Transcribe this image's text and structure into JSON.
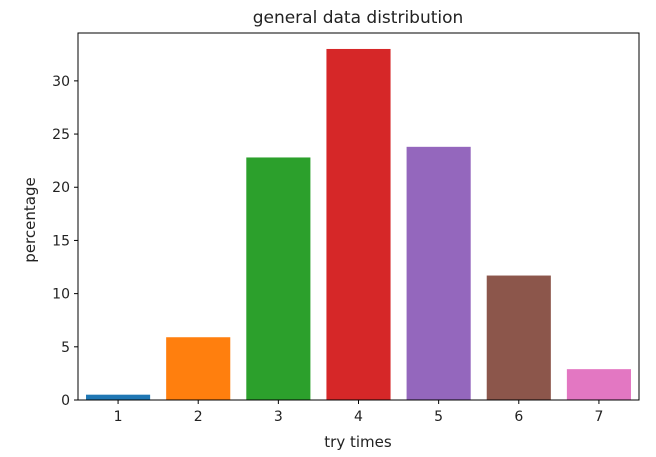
{
  "chart_data": {
    "type": "bar",
    "title": "general data distribution",
    "xlabel": "try times",
    "ylabel": "percentage",
    "categories": [
      "1",
      "2",
      "3",
      "4",
      "5",
      "6",
      "7"
    ],
    "values": [
      0.5,
      5.9,
      22.8,
      33.0,
      23.8,
      11.7,
      2.9
    ],
    "colors": [
      "#1f77b4",
      "#ff7f0e",
      "#2ca02c",
      "#d62728",
      "#9467bd",
      "#8c564b",
      "#e377c2"
    ],
    "ylim": [
      0,
      34.5
    ],
    "yticks": [
      0,
      5,
      10,
      15,
      20,
      25,
      30
    ],
    "grid": false,
    "legend": "none"
  }
}
